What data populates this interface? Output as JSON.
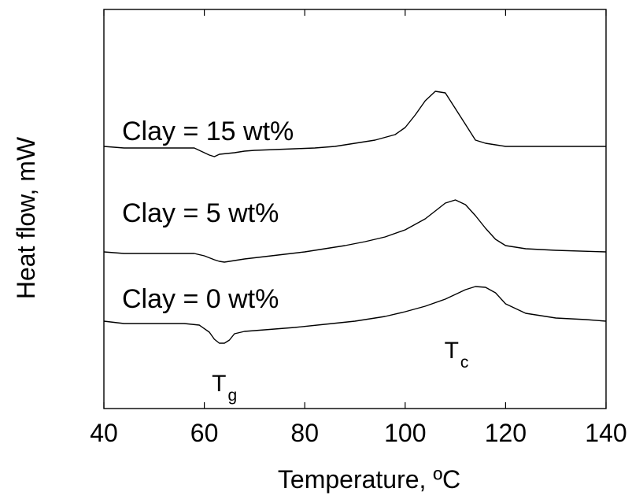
{
  "chart_data": {
    "type": "line",
    "xlabel": "Temperature, ºC",
    "ylabel": "Heat flow, mW",
    "xlim": [
      40,
      140
    ],
    "xticks": [
      "40",
      "60",
      "80",
      "100",
      "120",
      "140"
    ],
    "yticks_visible": false,
    "grid": false,
    "legend": "none",
    "series": [
      {
        "name": "Clay = 15 wt%",
        "x": [
          40,
          44,
          48,
          52,
          55,
          58,
          59,
          61,
          62,
          63,
          66,
          68,
          70,
          74,
          78,
          82,
          86,
          90,
          94,
          98,
          100,
          102,
          104,
          106,
          108,
          110,
          112,
          114,
          116,
          118,
          120,
          124,
          130,
          140
        ],
        "y": [
          0,
          -2,
          -2,
          -2,
          -2,
          -2,
          -5,
          -11,
          -13,
          -10,
          -8,
          -6,
          -5,
          -4,
          -3,
          -2,
          0,
          4,
          8,
          15,
          24,
          40,
          58,
          70,
          68,
          48,
          28,
          8,
          4,
          2,
          0,
          0,
          0,
          0
        ]
      },
      {
        "name": "Clay = 5 wt%",
        "x": [
          40,
          44,
          48,
          52,
          56,
          58,
          60,
          62,
          63,
          64,
          66,
          68,
          72,
          76,
          80,
          84,
          88,
          92,
          96,
          100,
          104,
          106,
          108,
          110,
          112,
          114,
          116,
          118,
          120,
          124,
          130,
          140
        ],
        "y": [
          0,
          -2,
          -2,
          -2,
          -2,
          -2,
          -5,
          -10,
          -12,
          -13,
          -11,
          -9,
          -6,
          -3,
          0,
          4,
          8,
          13,
          19,
          28,
          42,
          52,
          62,
          66,
          60,
          46,
          30,
          16,
          8,
          4,
          2,
          0
        ]
      },
      {
        "name": "Clay = 0 wt%",
        "x": [
          40,
          44,
          48,
          52,
          56,
          59,
          61,
          62,
          63,
          64,
          65,
          66,
          68,
          72,
          78,
          84,
          90,
          96,
          100,
          104,
          108,
          112,
          114,
          116,
          118,
          120,
          124,
          130,
          136,
          140
        ],
        "y": [
          0,
          -3,
          -3,
          -3,
          -3,
          -5,
          -14,
          -23,
          -28,
          -28,
          -24,
          -16,
          -13,
          -11,
          -8,
          -4,
          0,
          6,
          12,
          19,
          28,
          40,
          44,
          43,
          36,
          22,
          10,
          4,
          2,
          0
        ]
      }
    ],
    "annotations": [
      {
        "main": "T",
        "sub": "g",
        "x": 64
      },
      {
        "main": "T",
        "sub": "c",
        "x": 110
      }
    ]
  }
}
